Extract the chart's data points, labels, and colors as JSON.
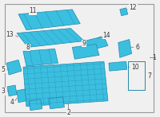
{
  "background_color": "#f0f0f0",
  "border_color": "#999999",
  "part_color": "#3bbfe0",
  "part_edge_color": "#2288aa",
  "label_color": "#333333",
  "line_color": "#666666",
  "figsize": [
    2.0,
    1.47
  ],
  "dpi": 100
}
